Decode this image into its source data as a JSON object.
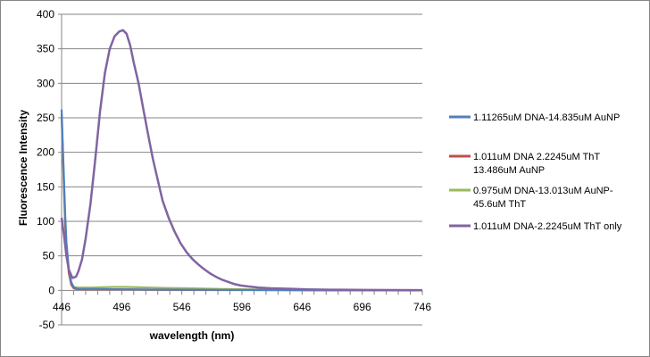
{
  "chart_data": {
    "type": "line",
    "title": "",
    "xlabel": "wavelength (nm)",
    "ylabel": "Fluorescence Intensity",
    "xlim": [
      446,
      746
    ],
    "ylim": [
      -50,
      400
    ],
    "xticks": [
      446,
      496,
      546,
      596,
      646,
      696,
      746
    ],
    "yticks": [
      -50,
      0,
      50,
      100,
      150,
      200,
      250,
      300,
      350,
      400
    ],
    "x_tick_labels": [
      "446",
      "496",
      "546",
      "596",
      "646",
      "696",
      "746"
    ],
    "y_tick_labels": [
      "-50",
      "0",
      "50",
      "100",
      "150",
      "200",
      "250",
      "300",
      "350",
      "400"
    ],
    "grid": "horizontal",
    "legend_position": "right",
    "series": [
      {
        "name": "1.11265uM DNA-14.835uM AuNP",
        "legend_lines": [
          "1.11265uM DNA-14.835uM AuNP"
        ],
        "color": "#4F81BD",
        "x": [
          446,
          447,
          448,
          449,
          450,
          452,
          454,
          456,
          458,
          460,
          470,
          500,
          550,
          600,
          650,
          700,
          746
        ],
        "y": [
          262,
          210,
          160,
          110,
          70,
          30,
          12,
          5,
          3,
          2,
          2,
          1.5,
          1,
          0.6,
          0.3,
          0.2,
          0.1
        ]
      },
      {
        "name": "1.011uM DNA 2.2245uM ThT 13.486uM AuNP",
        "legend_lines": [
          "1.011uM DNA 2.2245uM ThT",
          "13.486uM AuNP"
        ],
        "color": "#C0504D",
        "x": [
          446,
          447,
          448,
          449,
          450,
          452,
          454,
          456,
          458,
          460,
          480,
          500,
          520,
          550,
          600,
          650,
          700,
          746
        ],
        "y": [
          255,
          205,
          150,
          100,
          65,
          25,
          8,
          3,
          2,
          1.5,
          1.5,
          1.5,
          1,
          0.6,
          0.4,
          0.2,
          0.1,
          0.1
        ]
      },
      {
        "name": "0.975uM DNA-13.013uM AuNP-45.6uM ThT",
        "legend_lines": [
          "0.975uM DNA-13.013uM AuNP-",
          "45.6uM ThT"
        ],
        "color": "#9BBB59",
        "x": [
          446,
          447,
          448,
          449,
          450,
          452,
          454,
          456,
          458,
          460,
          470,
          480,
          490,
          500,
          510,
          520,
          530,
          550,
          580,
          600,
          630,
          650,
          700,
          746
        ],
        "y": [
          250,
          200,
          145,
          95,
          60,
          25,
          10,
          5,
          4,
          4,
          4,
          4.5,
          5,
          5,
          4.5,
          4,
          3.5,
          3,
          2,
          1.5,
          0.5,
          0.2,
          0.1,
          0.1
        ]
      },
      {
        "name": "1.011uM DNA-2.2245uM ThT only",
        "legend_lines": [
          "1.011uM DNA-2.2245uM ThT only"
        ],
        "color": "#8064A2",
        "x": [
          446,
          448,
          450,
          452,
          455,
          458,
          460,
          463,
          466,
          470,
          474,
          478,
          482,
          486,
          490,
          494,
          497,
          500,
          503,
          506,
          510,
          514,
          518,
          522,
          526,
          530,
          535,
          540,
          545,
          550,
          555,
          560,
          565,
          570,
          575,
          580,
          585,
          590,
          595,
          600,
          610,
          620,
          630,
          640,
          650,
          670,
          700,
          746
        ],
        "y": [
          105,
          80,
          50,
          30,
          18,
          20,
          28,
          45,
          75,
          125,
          190,
          260,
          315,
          350,
          368,
          375,
          377,
          372,
          355,
          330,
          300,
          262,
          225,
          190,
          160,
          130,
          105,
          85,
          68,
          55,
          45,
          37,
          30,
          24,
          19,
          15,
          12,
          9,
          7,
          6,
          4,
          3,
          2.5,
          2,
          1.5,
          1,
          0.5,
          0.3
        ]
      }
    ]
  }
}
